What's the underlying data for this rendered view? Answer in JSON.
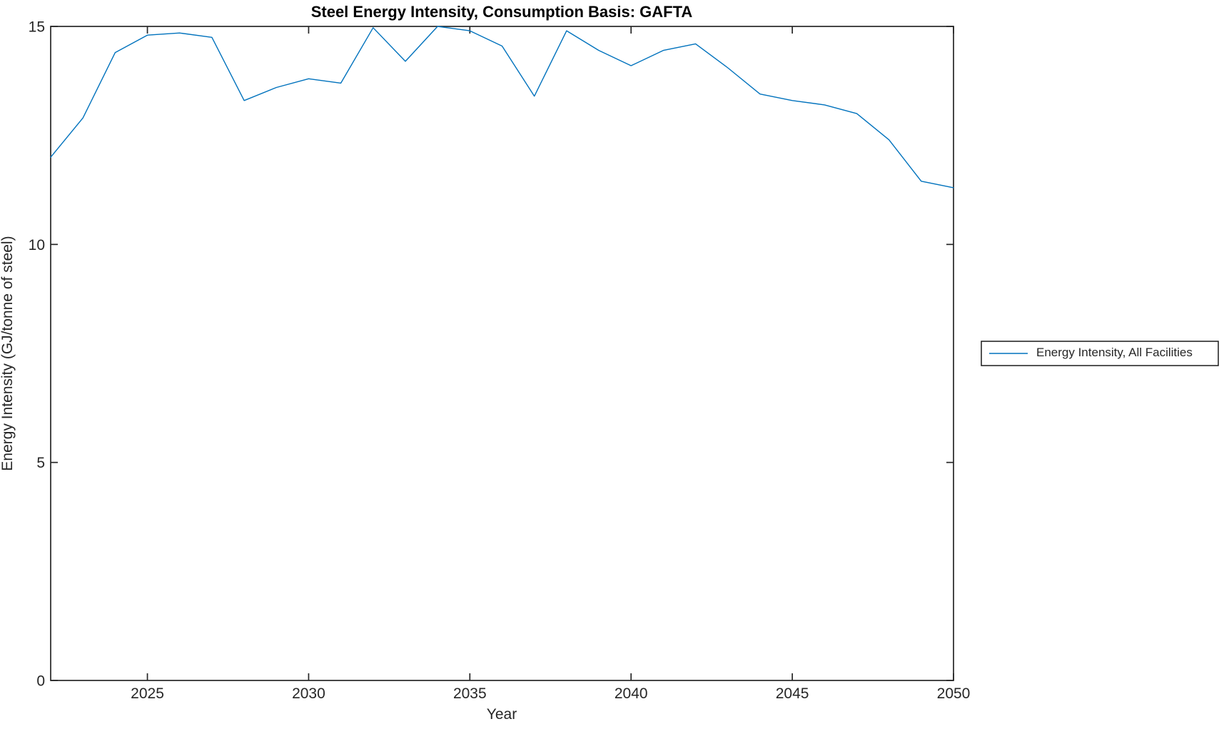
{
  "window": {
    "background": "#ffffff"
  },
  "colors": {
    "axis": "#262626",
    "title": "#000000",
    "series_blue": "#0072BD",
    "plot_background": "#ffffff"
  },
  "chart_data": {
    "type": "line",
    "title": "Steel Energy Intensity, Consumption Basis: GAFTA",
    "xlabel": "Year",
    "ylabel": "Energy Intensity (GJ/tonne of steel)",
    "xlim": [
      2022,
      2050
    ],
    "ylim": [
      0,
      15
    ],
    "xticks": [
      2025,
      2030,
      2035,
      2040,
      2045,
      2050
    ],
    "yticks": [
      0,
      5,
      10,
      15
    ],
    "grid": false,
    "box": true,
    "legend_position": "right-outside",
    "x": [
      2022,
      2023,
      2024,
      2025,
      2026,
      2027,
      2028,
      2029,
      2030,
      2031,
      2032,
      2033,
      2034,
      2035,
      2036,
      2037,
      2038,
      2039,
      2040,
      2041,
      2042,
      2043,
      2044,
      2045,
      2046,
      2047,
      2048,
      2049,
      2050
    ],
    "series": [
      {
        "name": "Energy Intensity, All Facilities",
        "color": "#0072BD",
        "values": [
          12.0,
          12.9,
          14.4,
          14.8,
          14.85,
          14.75,
          13.3,
          13.6,
          13.8,
          13.7,
          14.97,
          14.2,
          15.0,
          14.9,
          14.55,
          13.4,
          14.9,
          14.45,
          14.1,
          14.45,
          14.6,
          14.05,
          13.45,
          13.3,
          13.2,
          13.0,
          12.4,
          11.45,
          11.3
        ]
      }
    ]
  },
  "legend": {
    "entries": [
      {
        "label": "Energy Intensity, All Facilities",
        "color": "#0072BD"
      }
    ]
  }
}
